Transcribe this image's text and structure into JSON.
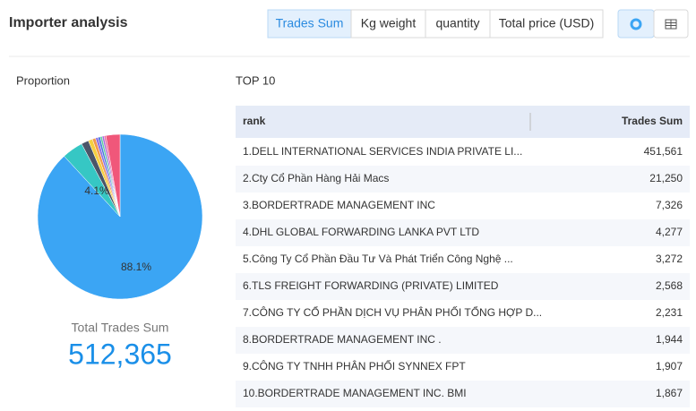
{
  "header": {
    "title": "Importer analysis",
    "tabs": [
      "Trades Sum",
      "Kg weight",
      "quantity",
      "Total price (USD)"
    ],
    "active_tab": 0
  },
  "proportion": {
    "title": "Proportion",
    "slice_labels": [
      "88.1%",
      "4.1%"
    ],
    "total_label": "Total Trades Sum",
    "total": {
      "value": 512365,
      "label": "512,365"
    },
    "colors": [
      "#3ba5f4",
      "#36c7c4",
      "#4b5568",
      "#f5d03f",
      "#f29a4a",
      "#8b6ee6",
      "#4a78dc",
      "#5fcf9e",
      "#a56be0",
      "#e96b9e",
      "#f0577a"
    ]
  },
  "top": {
    "title": "TOP 10",
    "columns": [
      "rank",
      "Trades Sum"
    ],
    "rows": [
      {
        "name": "1.DELL INTERNATIONAL SERVICES INDIA PRIVATE LI...",
        "value": 451561,
        "label": "451,561"
      },
      {
        "name": "2.Cty Cổ Phần Hàng Hải Macs",
        "value": 21250,
        "label": "21,250"
      },
      {
        "name": "3.BORDERTRADE MANAGEMENT INC",
        "value": 7326,
        "label": "7,326"
      },
      {
        "name": "4.DHL GLOBAL FORWARDING LANKA PVT LTD",
        "value": 4277,
        "label": "4,277"
      },
      {
        "name": "5.Công Ty Cổ Phần Đầu Tư Và Phát Triển Công Nghệ ...",
        "value": 3272,
        "label": "3,272"
      },
      {
        "name": "6.TLS FREIGHT FORWARDING (PRIVATE) LIMITED",
        "value": 2568,
        "label": "2,568"
      },
      {
        "name": "7.CÔNG TY CỔ PHẦN DỊCH VỤ PHÂN PHỐI TỔNG HỢP D...",
        "value": 2231,
        "label": "2,231"
      },
      {
        "name": "8.BORDERTRADE MANAGEMENT INC .",
        "value": 1944,
        "label": "1,944"
      },
      {
        "name": "9.CÔNG TY TNHH PHÂN PHỐI SYNNEX FPT",
        "value": 1907,
        "label": "1,907"
      },
      {
        "name": "10.BORDERTRADE MANAGEMENT INC. BMI",
        "value": 1867,
        "label": "1,867"
      }
    ]
  }
}
